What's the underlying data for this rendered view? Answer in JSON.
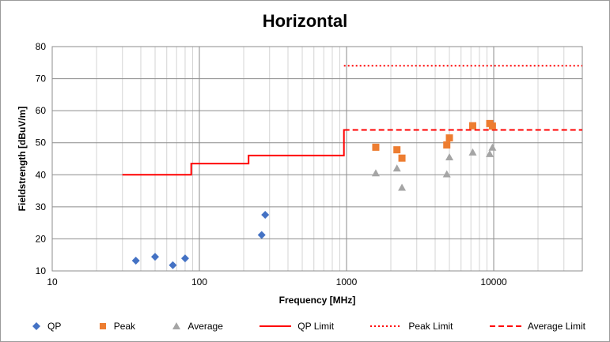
{
  "chart_data": {
    "type": "scatter",
    "title": "Horizontal",
    "xlabel": "Frequency [MHz]",
    "ylabel": "Fieldstrength [dBuV/m]",
    "x_scale": "log",
    "xlim": [
      10,
      40000
    ],
    "ylim": [
      10,
      80
    ],
    "x_ticks": [
      10,
      100,
      1000,
      10000
    ],
    "y_ticks": [
      10,
      20,
      30,
      40,
      50,
      60,
      70,
      80
    ],
    "grid": true,
    "legend_position": "bottom",
    "series": [
      {
        "name": "QP",
        "kind": "marker",
        "marker": "diamond",
        "color": "#4472C4",
        "points": [
          [
            37,
            13.2
          ],
          [
            50,
            14.4
          ],
          [
            66,
            11.8
          ],
          [
            80,
            13.9
          ],
          [
            265,
            21.2
          ],
          [
            280,
            27.5
          ]
        ]
      },
      {
        "name": "Peak",
        "kind": "marker",
        "marker": "square",
        "color": "#ED7D31",
        "points": [
          [
            1580,
            48.6
          ],
          [
            2200,
            47.8
          ],
          [
            2380,
            45.2
          ],
          [
            4800,
            49.3
          ],
          [
            5000,
            51.5
          ],
          [
            7200,
            55.3
          ],
          [
            9400,
            56.0
          ],
          [
            9800,
            55.2
          ]
        ]
      },
      {
        "name": "Average",
        "kind": "marker",
        "marker": "triangle",
        "color": "#A5A5A5",
        "points": [
          [
            1580,
            40.5
          ],
          [
            2200,
            42.0
          ],
          [
            2380,
            36.0
          ],
          [
            4800,
            40.2
          ],
          [
            5000,
            45.5
          ],
          [
            7200,
            47.0
          ],
          [
            9400,
            46.5
          ],
          [
            9800,
            48.5
          ]
        ]
      },
      {
        "name": "QP Limit",
        "kind": "line",
        "style": "solid",
        "color": "#FF0000",
        "points": [
          [
            30,
            40
          ],
          [
            88,
            40
          ],
          [
            88,
            43.5
          ],
          [
            216,
            43.5
          ],
          [
            216,
            46
          ],
          [
            960,
            46
          ],
          [
            960,
            54
          ],
          [
            1000,
            54
          ]
        ]
      },
      {
        "name": "Peak Limit",
        "kind": "line",
        "style": "dotted",
        "color": "#FF0000",
        "points": [
          [
            960,
            74
          ],
          [
            40000,
            74
          ]
        ]
      },
      {
        "name": "Average Limit",
        "kind": "line",
        "style": "dashed",
        "color": "#FF0000",
        "points": [
          [
            960,
            54
          ],
          [
            40000,
            54
          ]
        ]
      }
    ]
  }
}
